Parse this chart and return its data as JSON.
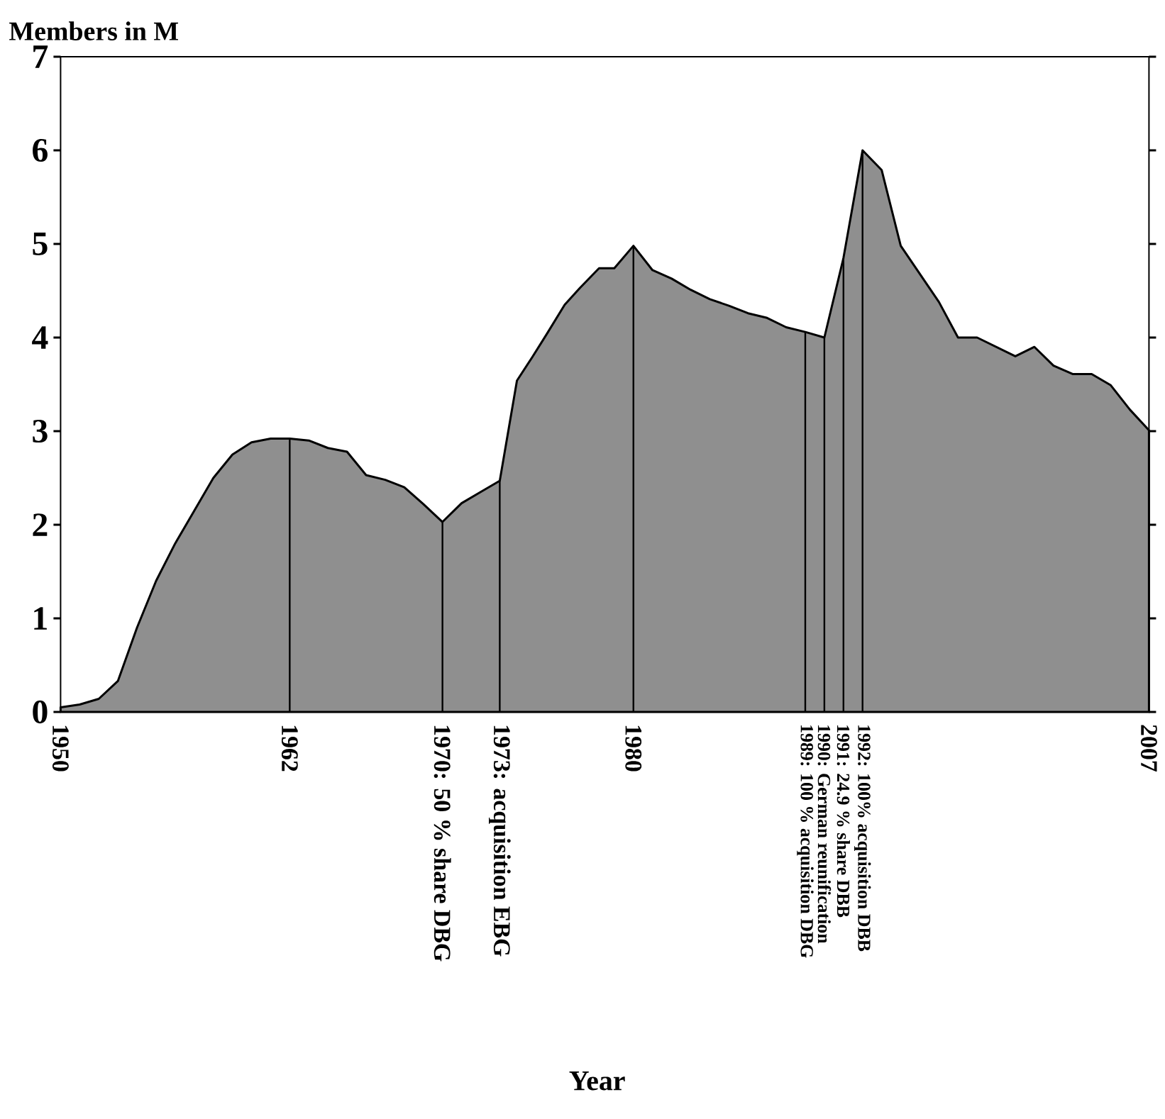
{
  "chart_data": {
    "type": "area",
    "xlabel": "Year",
    "ylabel": "Members in M",
    "xlim": [
      1950,
      2007
    ],
    "ylim": [
      0,
      7
    ],
    "yticks": [
      0,
      1,
      2,
      3,
      4,
      5,
      6,
      7
    ],
    "xticks": [
      1950,
      1962,
      {
        "value": 1970,
        "label": "1970: 50 % share DBG"
      },
      {
        "value": 1973,
        "label": "1973: acquisition EBG"
      },
      1980,
      {
        "value": 1989,
        "label": "1989: 100 % acquisition DBG"
      },
      {
        "value": 1990,
        "label": "1990: German reunification"
      },
      {
        "value": 1991,
        "label": "1991: 24.9 % share DBB"
      },
      {
        "value": 1992,
        "label": "1992: 100% acquisition DBB"
      },
      2007
    ],
    "series": [
      {
        "color": "#8f8f8f",
        "x": [
          1950,
          1951,
          1952,
          1953,
          1954,
          1955,
          1956,
          1957,
          1958,
          1959,
          1960,
          1961,
          1962,
          1963,
          1964,
          1965,
          1966,
          1967,
          1968,
          1969,
          1970,
          1971,
          1972,
          1973,
          1973.9,
          1974.7,
          1975.5,
          1976.4,
          1977.2,
          1978.2,
          1979.0,
          1980,
          1981,
          1982,
          1983,
          1984,
          1985,
          1986,
          1987,
          1988,
          1989,
          1990,
          1991,
          1992,
          1993,
          1994,
          1995,
          1996,
          1997,
          1998,
          1999,
          2000,
          2001,
          2002,
          2003,
          2004,
          2005,
          2006,
          2007
        ],
        "values": [
          0.05,
          0.08,
          0.14,
          0.33,
          0.9,
          1.4,
          1.8,
          2.15,
          2.5,
          2.75,
          2.88,
          2.92,
          2.92,
          2.9,
          2.82,
          2.78,
          2.53,
          2.48,
          2.4,
          2.22,
          2.03,
          2.23,
          2.35,
          2.47,
          3.54,
          3.79,
          4.05,
          4.35,
          4.53,
          4.74,
          4.74,
          4.98,
          4.72,
          4.63,
          4.51,
          4.41,
          4.34,
          4.26,
          4.21,
          4.11,
          4.06,
          4.0,
          4.85,
          6.0,
          5.79,
          4.98,
          4.68,
          4.38,
          4.0,
          4.0,
          3.9,
          3.8,
          3.9,
          3.7,
          3.61,
          3.61,
          3.49,
          3.23,
          3.01
        ]
      }
    ],
    "ref_lines": [
      {
        "axis": "x",
        "value": 1962
      },
      {
        "axis": "x",
        "value": 1970
      },
      {
        "axis": "x",
        "value": 1973
      },
      {
        "axis": "x",
        "value": 1980
      },
      {
        "axis": "x",
        "value": 1989
      },
      {
        "axis": "x",
        "value": 1990
      },
      {
        "axis": "x",
        "value": 1991
      },
      {
        "axis": "x",
        "value": 1992
      }
    ]
  }
}
